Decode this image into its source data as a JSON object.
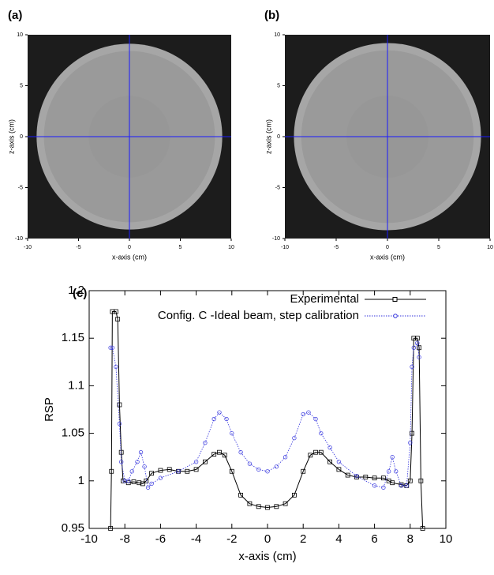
{
  "chart_data": [
    {
      "type": "image",
      "panel_label": "(a)",
      "xlabel": "x-axis (cm)",
      "ylabel": "z-axis (cm)",
      "xlim": [
        -10,
        10
      ],
      "ylim": [
        -10,
        10
      ],
      "xticks": [
        -10,
        -5,
        0,
        5,
        10
      ],
      "yticks": [
        -10,
        -5,
        0,
        5,
        10
      ]
    },
    {
      "type": "image",
      "panel_label": "(b)",
      "xlabel": "x-axis (cm)",
      "ylabel": "z-axis (cm)",
      "xlim": [
        -10,
        10
      ],
      "ylim": [
        -10,
        10
      ],
      "xticks": [
        -10,
        -5,
        0,
        5,
        10
      ],
      "yticks": [
        -10,
        -5,
        0,
        5,
        10
      ]
    },
    {
      "type": "line",
      "panel_label": "(c)",
      "xlabel": "x-axis (cm)",
      "ylabel": "RSP",
      "xlim": [
        -10,
        10
      ],
      "ylim": [
        0.95,
        1.2
      ],
      "xticks": [
        -10,
        -8,
        -6,
        -4,
        -2,
        0,
        2,
        4,
        6,
        8,
        10
      ],
      "yticks": [
        0.95,
        1,
        1.05,
        1.1,
        1.15,
        1.2
      ],
      "legend": "upper right",
      "series": [
        {
          "name": "Experimental",
          "color": "#000000",
          "marker": "square",
          "x": [
            -8.8,
            -8.75,
            -8.7,
            -8.5,
            -8.4,
            -8.3,
            -8.2,
            -8.1,
            -7.8,
            -7.5,
            -7.2,
            -7,
            -6.8,
            -6.5,
            -6,
            -5.5,
            -5,
            -4.5,
            -4,
            -3.5,
            -3,
            -2.7,
            -2.4,
            -2,
            -1.5,
            -1,
            -0.5,
            0,
            0.5,
            1,
            1.5,
            2,
            2.4,
            2.7,
            3,
            3.5,
            4,
            4.5,
            5,
            5.5,
            6,
            6.5,
            6.8,
            7,
            7.5,
            7.8,
            8,
            8.1,
            8.2,
            8.4,
            8.5,
            8.6,
            8.7
          ],
          "values": [
            0.95,
            1.01,
            1.178,
            1.178,
            1.17,
            1.08,
            1.03,
            1.0,
            0.998,
            0.999,
            0.998,
            0.997,
            1.0,
            1.008,
            1.011,
            1.012,
            1.01,
            1.01,
            1.012,
            1.02,
            1.028,
            1.03,
            1.027,
            1.01,
            0.985,
            0.976,
            0.973,
            0.972,
            0.973,
            0.976,
            0.985,
            1.01,
            1.027,
            1.03,
            1.03,
            1.02,
            1.012,
            1.006,
            1.004,
            1.004,
            1.003,
            1.003,
            1.0,
            0.998,
            0.996,
            0.995,
            1.0,
            1.05,
            1.15,
            1.15,
            1.14,
            1.0,
            0.95
          ]
        },
        {
          "name": "Config. C -Ideal beam, step calibration",
          "color": "#3333dd",
          "marker": "circle",
          "x": [
            -8.8,
            -8.7,
            -8.5,
            -8.3,
            -8.2,
            -8,
            -7.8,
            -7.6,
            -7.3,
            -7.1,
            -6.9,
            -6.7,
            -6.5,
            -6,
            -5,
            -4,
            -3.5,
            -3,
            -2.7,
            -2.3,
            -2,
            -1.5,
            -1,
            -0.5,
            0,
            0.5,
            1,
            1.5,
            2,
            2.3,
            2.7,
            3,
            3.5,
            4,
            5,
            6,
            6.5,
            6.8,
            7,
            7.2,
            7.5,
            7.8,
            8,
            8.1,
            8.2,
            8.4,
            8.5
          ],
          "values": [
            1.14,
            1.14,
            1.12,
            1.06,
            1.02,
            1.0,
            1.0,
            1.01,
            1.02,
            1.03,
            1.015,
            0.993,
            0.997,
            1.003,
            1.01,
            1.02,
            1.04,
            1.065,
            1.072,
            1.065,
            1.05,
            1.03,
            1.018,
            1.012,
            1.01,
            1.015,
            1.025,
            1.045,
            1.07,
            1.072,
            1.065,
            1.05,
            1.035,
            1.02,
            1.005,
            0.995,
            0.993,
            1.01,
            1.025,
            1.01,
            0.995,
            0.995,
            1.04,
            1.12,
            1.14,
            1.145,
            1.13
          ]
        }
      ]
    }
  ]
}
